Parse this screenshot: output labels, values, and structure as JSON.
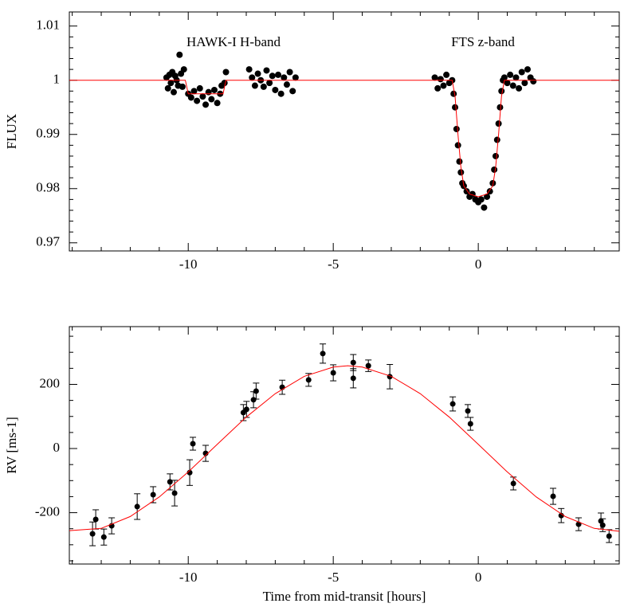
{
  "chart_data": [
    {
      "type": "scatter",
      "ylabel": "FLUX",
      "annotations": [
        "HAWK-I H-band",
        "FTS z-band"
      ],
      "xlim": [
        -14.1,
        4.86
      ],
      "ylim": [
        0.9685,
        1.0126
      ],
      "xticks": [
        -10,
        -5,
        0
      ],
      "yticks": [
        0.97,
        0.98,
        0.99,
        1,
        1.01
      ],
      "xminorticks": [
        -14,
        -13,
        -12,
        -11,
        -9,
        -8,
        -7,
        -6,
        -4,
        -3,
        -2,
        -1,
        1,
        2,
        3,
        4
      ],
      "yminorticks": [
        0.972,
        0.974,
        0.976,
        0.978,
        0.982,
        0.984,
        0.986,
        0.988,
        0.992,
        0.994,
        0.996,
        0.998,
        1.002,
        1.004,
        1.006,
        1.008
      ],
      "series": [
        {
          "mode": "markers",
          "color": "#000000",
          "x": [
            -10.75,
            -10.7,
            -10.65,
            -10.6,
            -10.55,
            -10.5,
            -10.45,
            -10.4,
            -10.35,
            -10.3,
            -10.25,
            -10.2,
            -10.15,
            -10,
            -9.9,
            -9.8,
            -9.7,
            -9.6,
            -9.5,
            -9.4,
            -9.3,
            -9.2,
            -9.1,
            -9,
            -8.9,
            -8.85,
            -8.75,
            -8.7,
            -7.9,
            -7.8,
            -7.7,
            -7.6,
            -7.5,
            -7.4,
            -7.3,
            -7.2,
            -7.1,
            -7,
            -6.9,
            -6.8,
            -6.7,
            -6.6,
            -6.5,
            -6.4,
            -6.3,
            -1.5,
            -1.4,
            -1.3,
            -1.2,
            -1.1,
            -1,
            -0.9,
            -0.85,
            -0.8,
            -0.75,
            -0.7,
            -0.65,
            -0.6,
            -0.55,
            -0.5,
            -0.4,
            -0.3,
            -0.2,
            -0.1,
            0,
            0.1,
            0.2,
            0.3,
            0.4,
            0.5,
            0.55,
            0.6,
            0.65,
            0.7,
            0.75,
            0.8,
            0.85,
            0.9,
            1,
            1.1,
            1.2,
            1.3,
            1.4,
            1.5,
            1.6,
            1.7,
            1.8,
            1.9
          ],
          "values": [
            1.0005,
            0.9985,
            1.001,
            0.9995,
            1.0015,
            0.9978,
            1.0008,
            1.0,
            0.999,
            1.0047,
            1.0012,
            0.9988,
            1.002,
            0.9975,
            0.9968,
            0.998,
            0.9962,
            0.9985,
            0.997,
            0.9955,
            0.9978,
            0.9965,
            0.9982,
            0.9958,
            0.9975,
            0.999,
            0.9995,
            1.0015,
            1.002,
            1.0005,
            0.999,
            1.0012,
            1.0,
            0.9988,
            1.0018,
            0.9995,
            1.0008,
            0.9982,
            1.001,
            0.9975,
            1.0005,
            0.9992,
            1.0015,
            0.998,
            1.0005,
            1.0005,
            0.9985,
            1.0002,
            0.999,
            1.001,
            0.9995,
            1.0,
            0.9975,
            0.995,
            0.991,
            0.988,
            0.985,
            0.983,
            0.981,
            0.9805,
            0.9795,
            0.9785,
            0.979,
            0.978,
            0.9775,
            0.978,
            0.9765,
            0.9785,
            0.9795,
            0.981,
            0.9835,
            0.986,
            0.989,
            0.992,
            0.995,
            0.998,
            1.0,
            1.0005,
            0.9995,
            1.001,
            0.999,
            1.0005,
            0.9985,
            1.0015,
            0.9995,
            1.002,
            1.0005,
            0.9998
          ]
        },
        {
          "mode": "line",
          "color": "#ff0000",
          "x": [
            -14.1,
            -10.1,
            -10,
            -8.8,
            -8.7,
            -0.9,
            -0.8,
            -0.7,
            -0.6,
            -0.5,
            -0.3,
            0,
            0.3,
            0.5,
            0.6,
            0.7,
            0.8,
            0.9,
            4.86
          ],
          "values": [
            1,
            1,
            0.9975,
            0.9975,
            1,
            1,
            0.997,
            0.99,
            0.984,
            0.9805,
            0.979,
            0.9785,
            0.979,
            0.9805,
            0.984,
            0.99,
            0.997,
            1,
            1
          ]
        }
      ]
    },
    {
      "type": "scatter",
      "xlabel": "Time from mid-transit [hours]",
      "ylabel": "RV [ms-1]",
      "xlim": [
        -14.1,
        4.86
      ],
      "ylim": [
        -360,
        380
      ],
      "xticks": [
        -10,
        -5,
        0
      ],
      "yticks": [
        -200,
        0,
        200
      ],
      "xminorticks": [
        -14,
        -13,
        -12,
        -11,
        -9,
        -8,
        -7,
        -6,
        -4,
        -3,
        -2,
        -1,
        1,
        2,
        3,
        4
      ],
      "yminorticks": [
        -350,
        -300,
        -250,
        -150,
        -100,
        -50,
        50,
        100,
        150,
        250,
        300,
        350
      ],
      "series": [
        {
          "mode": "markers",
          "color": "#000000",
          "x": [
            -13.3,
            -13.19,
            -12.91,
            -12.64,
            -11.76,
            -11.21,
            -10.63,
            -10.47,
            -9.95,
            -9.84,
            -9.4,
            -8.1,
            -7.99,
            -7.75,
            -7.66,
            -6.76,
            -5.85,
            -5.36,
            -5,
            -4.31,
            -4.31,
            -3.79,
            -3.05,
            -0.88,
            -0.36,
            -0.27,
            1.21,
            2.58,
            2.86,
            3.46,
            4.23,
            4.29,
            4.51
          ],
          "values": [
            -266,
            -221,
            -276,
            -241,
            -181,
            -144,
            -104,
            -139,
            -75,
            15,
            -15,
            112,
            122,
            152,
            179,
            191,
            214,
            296,
            236,
            268,
            219,
            258,
            224,
            139,
            117,
            77,
            -109,
            -149,
            -209,
            -236,
            -226,
            -239,
            -273
          ],
          "errors": [
            37,
            30,
            25,
            25,
            40,
            25,
            25,
            40,
            40,
            20,
            25,
            25,
            25,
            25,
            25,
            22,
            20,
            30,
            25,
            25,
            30,
            18,
            38,
            22,
            20,
            20,
            20,
            25,
            22,
            20,
            25,
            20,
            20
          ]
        },
        {
          "mode": "line",
          "color": "#ff0000",
          "x": [
            -14.1,
            -13,
            -12,
            -11,
            -10,
            -9,
            -8,
            -7,
            -6,
            -5,
            -4.5,
            -4,
            -3,
            -2,
            -1,
            0,
            1,
            2,
            3,
            4,
            4.86
          ],
          "values": [
            -256,
            -249,
            -212,
            -151,
            -73,
            13,
            98,
            171,
            225,
            254,
            258,
            254,
            225,
            171,
            98,
            13,
            -73,
            -151,
            -212,
            -249,
            -258
          ]
        }
      ]
    }
  ]
}
